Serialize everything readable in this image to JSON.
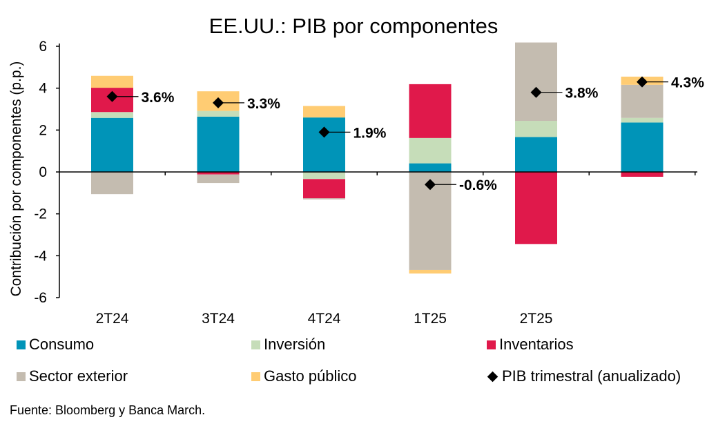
{
  "chart_data": {
    "type": "bar",
    "stacked": true,
    "title": "EE.UU.: PIB por componentes",
    "xlabel": "",
    "ylabel": "Contribución por componentes (p.p.)",
    "ylim": [
      -6,
      6
    ],
    "yticks": [
      6,
      4,
      2,
      0,
      -2,
      -4,
      -6
    ],
    "grid": false,
    "categories": [
      "2T24",
      "3T24",
      "4T24",
      "1T25",
      "2T25",
      ""
    ],
    "series": [
      {
        "name": "Consumo",
        "color": "#0094B8",
        "values": [
          2.58,
          2.64,
          2.6,
          0.41,
          1.67,
          2.36
        ]
      },
      {
        "name": "Inversión",
        "color": "#C6DDB9",
        "values": [
          0.28,
          0.27,
          -0.34,
          1.21,
          0.77,
          0.22
        ]
      },
      {
        "name": "Inventarios",
        "color": "#E0194B",
        "values": [
          1.16,
          -0.12,
          -0.92,
          2.57,
          -3.44,
          -0.23
        ]
      },
      {
        "name": "Sector exterior",
        "color": "#C4BCB0",
        "values": [
          -1.06,
          -0.41,
          -0.05,
          -4.68,
          3.74,
          1.58
        ]
      },
      {
        "name": "Gasto público",
        "color": "#FFCC73",
        "values": [
          0.57,
          0.94,
          0.55,
          -0.17,
          0.0,
          0.39
        ]
      }
    ],
    "line_series": {
      "name": "PIB trimestral (anualizado)",
      "marker": "diamond",
      "values": [
        3.6,
        3.3,
        1.9,
        -0.6,
        3.8,
        4.3
      ],
      "labels": [
        "3.6%",
        "3.3%",
        "1.9%",
        "-0.6%",
        "3.8%",
        "4.3%"
      ]
    },
    "legend_position": "bottom"
  },
  "legend": {
    "items": [
      "Consumo",
      "Inversión",
      "Inventarios",
      "Sector exterior",
      "Gasto público",
      "PIB trimestral (anualizado)"
    ]
  },
  "source": "Fuente: Bloomberg y Banca March."
}
